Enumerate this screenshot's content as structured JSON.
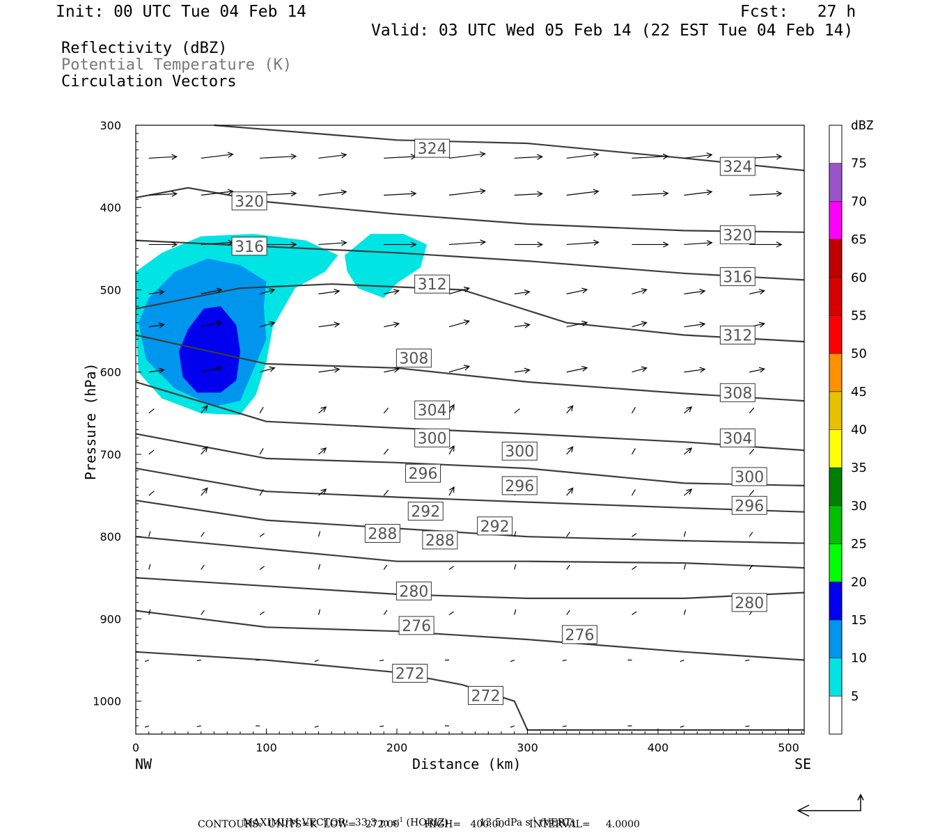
{
  "header": {
    "init": "Init: 00 UTC Tue 04 Feb 14",
    "fcst": "Fcst:   27 h",
    "valid": "Valid: 03 UTC Wed 05 Feb 14 (22 EST Tue 04 Feb 14)"
  },
  "legend": {
    "line1": "Reflectivity (dBZ)",
    "line2": "Potential Temperature (K)",
    "line3": "Circulation Vectors"
  },
  "colorbar": {
    "unit": "dBZ",
    "levels": [
      "5",
      "10",
      "15",
      "20",
      "25",
      "30",
      "35",
      "40",
      "45",
      "50",
      "55",
      "60",
      "65",
      "70",
      "75"
    ],
    "colors": [
      "#ffffff",
      "#00e4e4",
      "#0096ee",
      "#0000ee",
      "#00ff00",
      "#00c000",
      "#008000",
      "#ffff00",
      "#e7c000",
      "#ff9000",
      "#ff0000",
      "#d60000",
      "#c00000",
      "#ff00ff",
      "#9955c9",
      "#ffffff"
    ]
  },
  "footer": {
    "max_prefix": "MAXIMUM VECTOR:  33.3 m s",
    "max_exp1": "-1",
    "max_mid": " (HORIZ)          13.5 dPa s",
    "max_exp2": "-1",
    "max_suffix": " (VERT)",
    "contours": "CONTOURS:  UNITS=K  LOW=   272.00        HIGH=   400.00        INTERVAL=     4.0000"
  },
  "chart_data": {
    "type": "cross-section",
    "xlabel": "Distance (km)",
    "ylabel": "Pressure (hPa)",
    "xlim": [
      0,
      512
    ],
    "ylim": [
      1040,
      300
    ],
    "x_ticks": [
      "0",
      "100",
      "200",
      "300",
      "400",
      "500"
    ],
    "x_tick_values": [
      0,
      100,
      200,
      300,
      400,
      500
    ],
    "y_ticks": [
      "300",
      "400",
      "500",
      "600",
      "700",
      "800",
      "900",
      "1000"
    ],
    "y_tick_values": [
      300,
      400,
      500,
      600,
      700,
      800,
      900,
      1000
    ],
    "x_end_labels": {
      "left": "NW",
      "right": "SE"
    },
    "theta_contours": [
      {
        "value": 324,
        "points": [
          [
            60,
            300
          ],
          [
            200,
            318
          ],
          [
            300,
            322
          ],
          [
            420,
            340
          ],
          [
            512,
            355
          ]
        ],
        "labels": [
          [
            227,
            328
          ],
          [
            461,
            350
          ]
        ]
      },
      {
        "value": 320,
        "points": [
          [
            0,
            388
          ],
          [
            40,
            376
          ],
          [
            100,
            393
          ],
          [
            200,
            408
          ],
          [
            300,
            420
          ],
          [
            420,
            428
          ],
          [
            512,
            430
          ]
        ],
        "labels": [
          [
            87,
            392
          ],
          [
            461,
            433
          ]
        ]
      },
      {
        "value": 316,
        "points": [
          [
            0,
            440
          ],
          [
            80,
            446
          ],
          [
            200,
            455
          ],
          [
            300,
            465
          ],
          [
            420,
            480
          ],
          [
            512,
            488
          ]
        ],
        "labels": [
          [
            87,
            447
          ],
          [
            461,
            484
          ]
        ]
      },
      {
        "value": 312,
        "points": [
          [
            0,
            523
          ],
          [
            80,
            498
          ],
          [
            150,
            493
          ],
          [
            250,
            500
          ],
          [
            330,
            540
          ],
          [
            420,
            555
          ],
          [
            512,
            563
          ]
        ],
        "labels": [
          [
            227,
            493
          ],
          [
            461,
            555
          ]
        ]
      },
      {
        "value": 308,
        "points": [
          [
            0,
            555
          ],
          [
            100,
            590
          ],
          [
            200,
            595
          ],
          [
            300,
            612
          ],
          [
            420,
            626
          ],
          [
            512,
            635
          ]
        ],
        "labels": [
          [
            213,
            583
          ],
          [
            461,
            625
          ]
        ]
      },
      {
        "value": 304,
        "points": [
          [
            0,
            612
          ],
          [
            100,
            660
          ],
          [
            200,
            668
          ],
          [
            300,
            675
          ],
          [
            420,
            685
          ],
          [
            512,
            695
          ]
        ],
        "labels": [
          [
            227,
            646
          ],
          [
            461,
            680
          ]
        ]
      },
      {
        "value": 300,
        "points": [
          [
            0,
            675
          ],
          [
            100,
            705
          ],
          [
            200,
            710
          ],
          [
            300,
            717
          ],
          [
            420,
            735
          ],
          [
            512,
            738
          ]
        ],
        "labels": [
          [
            227,
            680
          ],
          [
            294,
            696
          ],
          [
            470,
            727
          ]
        ]
      },
      {
        "value": 296,
        "points": [
          [
            0,
            717
          ],
          [
            100,
            745
          ],
          [
            200,
            752
          ],
          [
            300,
            758
          ],
          [
            420,
            765
          ],
          [
            512,
            770
          ]
        ],
        "labels": [
          [
            220,
            723
          ],
          [
            294,
            738
          ],
          [
            470,
            762
          ]
        ]
      },
      {
        "value": 292,
        "points": [
          [
            0,
            756
          ],
          [
            100,
            780
          ],
          [
            200,
            790
          ],
          [
            300,
            800
          ],
          [
            420,
            805
          ],
          [
            512,
            808
          ]
        ],
        "labels": [
          [
            222,
            769
          ],
          [
            275,
            787
          ]
        ]
      },
      {
        "value": 288,
        "points": [
          [
            0,
            800
          ],
          [
            100,
            815
          ],
          [
            200,
            830
          ],
          [
            300,
            830
          ],
          [
            420,
            832
          ],
          [
            512,
            838
          ]
        ],
        "labels": [
          [
            189,
            796
          ],
          [
            233,
            804
          ]
        ]
      },
      {
        "value": 280,
        "points": [
          [
            0,
            850
          ],
          [
            100,
            860
          ],
          [
            200,
            870
          ],
          [
            300,
            875
          ],
          [
            420,
            875
          ],
          [
            512,
            868
          ]
        ],
        "labels": [
          [
            213,
            866
          ],
          [
            470,
            880
          ]
        ]
      },
      {
        "value": 276,
        "points": [
          [
            0,
            890
          ],
          [
            100,
            910
          ],
          [
            200,
            915
          ],
          [
            300,
            925
          ],
          [
            420,
            940
          ],
          [
            512,
            950
          ]
        ],
        "labels": [
          [
            215,
            908
          ],
          [
            340,
            919
          ]
        ]
      },
      {
        "value": 272,
        "points": [
          [
            0,
            940
          ],
          [
            100,
            950
          ],
          [
            200,
            965
          ],
          [
            250,
            980
          ],
          [
            290,
            1000
          ],
          [
            300,
            1035
          ],
          [
            512,
            1035
          ]
        ],
        "labels": [
          [
            210,
            966
          ],
          [
            268,
            993
          ]
        ]
      }
    ],
    "reflectivity_regions": [
      {
        "dbz_min": 5,
        "color": "#00e4e4"
      },
      {
        "dbz_min": 10,
        "color": "#0096ee"
      },
      {
        "dbz_min": 15,
        "color": "#0000ee"
      }
    ],
    "max_vector": {
      "horiz": "33.3 m s-1",
      "vert": "13.5 dPa s-1"
    }
  }
}
